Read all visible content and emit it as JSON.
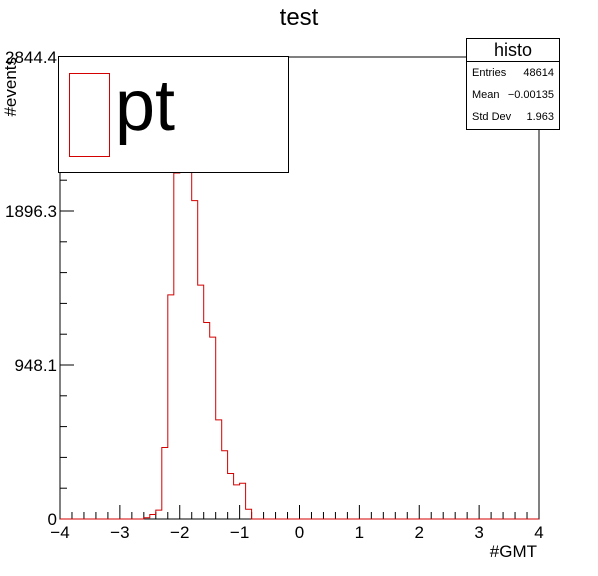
{
  "chart_data": {
    "type": "bar",
    "title": "test",
    "xlabel": "#GMT",
    "ylabel": "#events",
    "xlim": [
      -4,
      4
    ],
    "ylim": [
      0,
      2844.4
    ],
    "x_ticks": [
      "−4",
      "−3",
      "−2",
      "−1",
      "0",
      "1",
      "2",
      "3",
      "4"
    ],
    "y_ticks": [
      "0",
      "948.1",
      "1896.3",
      "2844.4"
    ],
    "series": [
      {
        "name": "pt",
        "color": "#d40000",
        "bin_edges": [
          -4.0,
          -3.9,
          -3.8,
          -3.7,
          -3.6,
          -3.5,
          -3.4,
          -3.3,
          -3.2,
          -3.1,
          -3.0,
          -2.9,
          -2.8,
          -2.7,
          -2.6,
          -2.5,
          -2.4,
          -2.3,
          -2.2,
          -2.1,
          -2.0,
          -1.9,
          -1.8,
          -1.7,
          -1.6,
          -1.5,
          -1.4,
          -1.3,
          -1.2,
          -1.1,
          -1.0,
          -0.9,
          -0.8,
          -0.7,
          -0.6,
          -0.5,
          -0.4,
          -0.3,
          -0.2,
          -0.1,
          0.0,
          0.1,
          0.2,
          0.3,
          0.4,
          0.5,
          0.6,
          0.7,
          0.8,
          0.9,
          1.0,
          1.1,
          1.2,
          1.3,
          1.4,
          1.5,
          1.6,
          1.7,
          1.8,
          1.9,
          2.0,
          2.1,
          2.2,
          2.3,
          2.4,
          2.5,
          2.6,
          2.7,
          2.8,
          2.9,
          3.0,
          3.1,
          3.2,
          3.3,
          3.4,
          3.5,
          3.6,
          3.7,
          3.8,
          3.9,
          4.0
        ],
        "counts": [
          0,
          0,
          0,
          0,
          0,
          0,
          0,
          0,
          0,
          0,
          0,
          0,
          0,
          0,
          8,
          28,
          55,
          440,
          1380,
          2130,
          2590,
          2230,
          1960,
          1440,
          1210,
          1120,
          610,
          420,
          280,
          210,
          220,
          60,
          0,
          0,
          0,
          0,
          0,
          0,
          0,
          0,
          0,
          0,
          0,
          0,
          0,
          0,
          0,
          0,
          0,
          0,
          0,
          0,
          0,
          0,
          0,
          0,
          0,
          0,
          0,
          0,
          0,
          0,
          0,
          0,
          0,
          0,
          0,
          0,
          0,
          0,
          0,
          0,
          0,
          0,
          0,
          0,
          0,
          0,
          0,
          0,
          0
        ]
      }
    ],
    "legend": {
      "entries": [
        "pt"
      ],
      "placement": "top-left"
    },
    "grid": false
  },
  "stats_box": {
    "title": "histo",
    "rows": [
      {
        "label": "Entries",
        "value": "48614"
      },
      {
        "label": "Mean",
        "value": "−0.00135"
      },
      {
        "label": "Std Dev",
        "value": "1.963"
      }
    ]
  }
}
